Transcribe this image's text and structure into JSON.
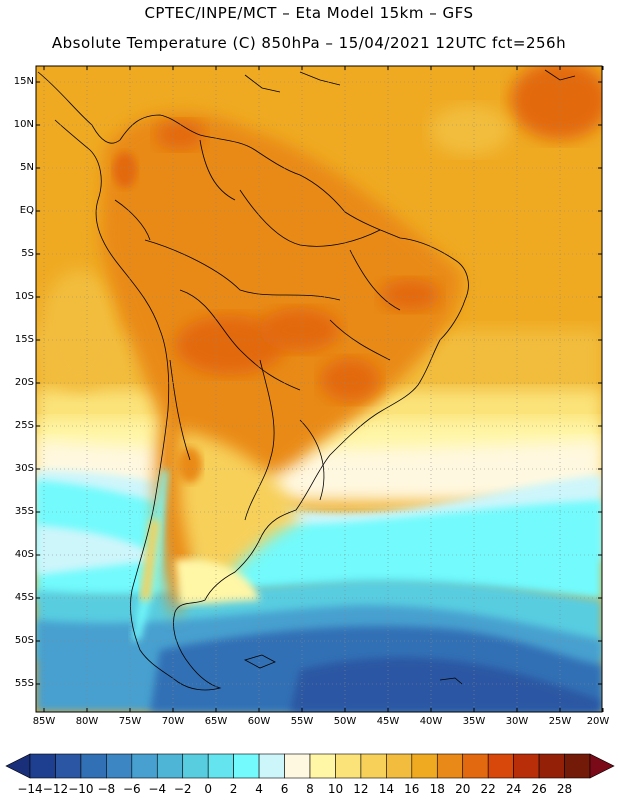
{
  "header": {
    "line1": "CPTEC/INPE/MCT –  Eta Model 15km – GFS",
    "line2": "Absolute Temperature (C) 850hPa – 15/04/2021 12UTC fct=256h"
  },
  "axes": {
    "lat_labels": [
      "15N",
      "10N",
      "5N",
      "EQ",
      "5S",
      "10S",
      "15S",
      "20S",
      "25S",
      "30S",
      "35S",
      "40S",
      "45S",
      "50S",
      "55S"
    ],
    "lon_labels": [
      "85W",
      "80W",
      "75W",
      "70W",
      "65W",
      "60W",
      "55W",
      "50W",
      "45W",
      "40W",
      "35W",
      "30W",
      "25W",
      "20W"
    ]
  },
  "colorbar": {
    "labels": [
      "-14",
      "-12",
      "-10",
      "-8",
      "-6",
      "-4",
      "-2",
      "0",
      "2",
      "4",
      "6",
      "8",
      "10",
      "12",
      "14",
      "16",
      "18",
      "20",
      "22",
      "24",
      "26",
      "28"
    ],
    "colors": [
      "#1e3f8f",
      "#2a56a3",
      "#3170b5",
      "#3b86c3",
      "#47a0cf",
      "#4fb5d6",
      "#58cde0",
      "#63e4ee",
      "#72fafc",
      "#cdf6fb",
      "#fff8e0",
      "#fff6a6",
      "#fbe37a",
      "#f7d05a",
      "#f2bd3e",
      "#efaa22",
      "#e98a18",
      "#e36910",
      "#d8480a",
      "#b82e08",
      "#952008",
      "#741a08"
    ],
    "low_arrow_color": "#1a2f7a",
    "high_arrow_color": "#7a0a18"
  },
  "palette": {
    "ocean_north": "#efaa22",
    "tropics_warm": "#e98a18",
    "hot_core": "#e36910",
    "subtropic": "#f7d05a",
    "mid_lat": "#fff6a6",
    "cool_band": "#cdf6fb",
    "cyan": "#72fafc",
    "cold": "#3b86c3",
    "very_cold": "#2a56a3",
    "coast": "#000000",
    "grid": "#888888"
  }
}
